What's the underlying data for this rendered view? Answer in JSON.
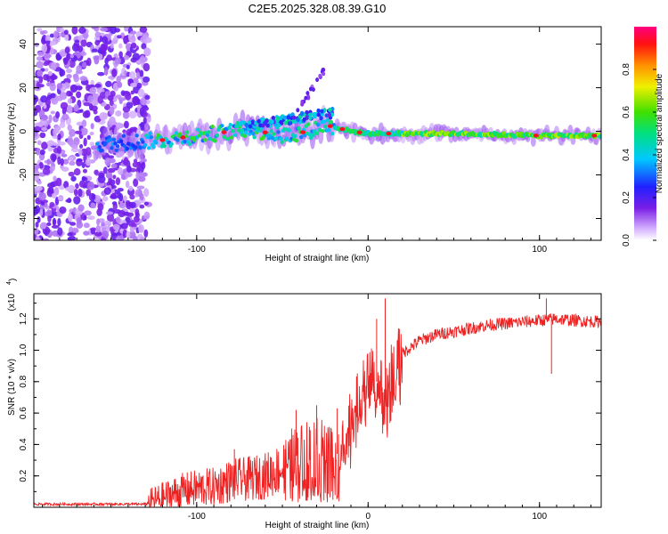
{
  "title": "C2E5.2025.328.08.39.G10",
  "chart_data": [
    {
      "type": "heatmap",
      "title": "C2E5.2025.328.08.39.G10",
      "xlabel": "Height of straight line (km)",
      "ylabel": "Frequency (Hz)",
      "xlim": [
        -195,
        136
      ],
      "ylim": [
        -50,
        48
      ],
      "xticks": [
        -100,
        0,
        100
      ],
      "xtick_labels": [
        "-100",
        "0",
        "100"
      ],
      "yticks": [
        -40,
        -20,
        0,
        20,
        40
      ],
      "ytick_labels": [
        "-40",
        "-20",
        "0",
        "20",
        "40"
      ],
      "colorbar": {
        "label": "Normalized spectral amplitude",
        "range": [
          0,
          1
        ],
        "ticks": [
          0.0,
          0.2,
          0.4,
          0.6,
          0.8
        ],
        "tick_labels": [
          "0.0",
          "0.2",
          "0.4",
          "0.6",
          "0.8"
        ],
        "colormap": "rainbow (white → purple → blue → cyan → green → yellow → orange → red → magenta)"
      },
      "features": [
        {
          "region": "noise",
          "x_range": [
            -195,
            -128
          ],
          "freq_range": [
            -50,
            48
          ],
          "amplitude": [
            0.05,
            0.15
          ]
        },
        {
          "region": "signal_band",
          "x_range": [
            -158,
            136
          ],
          "center_freq_at": [
            [
              -158,
              -6
            ],
            [
              -120,
              -4
            ],
            [
              -90,
              -1
            ],
            [
              -70,
              1
            ],
            [
              -50,
              -2
            ],
            [
              -35,
              0
            ],
            [
              -25,
              3
            ],
            [
              -10,
              0
            ],
            [
              0,
              -1
            ],
            [
              50,
              -1
            ],
            [
              100,
              -2
            ],
            [
              136,
              -2
            ]
          ]
        },
        {
          "region": "red_peaks",
          "x": [
            -120,
            -108,
            -84,
            -60,
            -38,
            -22,
            -15,
            -5,
            12,
            98,
            132
          ],
          "amplitude": 1.0
        }
      ]
    },
    {
      "type": "line",
      "xlabel": "Height of straight line (km)",
      "ylabel": "SNR (10 * v/v)",
      "y_scale_label": "(x10",
      "y_scale_exponent": "4",
      "xlim": [
        -195,
        136
      ],
      "ylim": [
        0,
        1.36
      ],
      "xticks": [
        -100,
        0,
        100
      ],
      "xtick_labels": [
        "-100",
        "0",
        "100"
      ],
      "yticks": [
        0.2,
        0.4,
        0.6,
        0.8,
        1.0,
        1.2
      ],
      "ytick_labels": [
        "0.2",
        "0.4",
        "0.6",
        "0.8",
        "1.0",
        "1.2"
      ],
      "color": "#ee2222",
      "series": [
        {
          "name": "SNR",
          "x": [
            -195,
            -175,
            -150,
            -130,
            -125,
            -120,
            -110,
            -100,
            -90,
            -80,
            -70,
            -60,
            -50,
            -45,
            -40,
            -35,
            -30,
            -25,
            -20,
            -15,
            -10,
            -5,
            0,
            5,
            10,
            15,
            20,
            25,
            30,
            40,
            50,
            60,
            70,
            80,
            90,
            100,
            110,
            120,
            136
          ],
          "y": [
            0.02,
            0.02,
            0.02,
            0.02,
            0.04,
            0.06,
            0.1,
            0.12,
            0.13,
            0.17,
            0.18,
            0.2,
            0.25,
            0.32,
            0.33,
            0.38,
            0.4,
            0.35,
            0.3,
            0.4,
            0.58,
            0.68,
            0.82,
            0.8,
            0.7,
            0.9,
            0.98,
            1.02,
            1.06,
            1.1,
            1.12,
            1.14,
            1.16,
            1.17,
            1.18,
            1.19,
            1.2,
            1.19,
            1.18
          ]
        }
      ],
      "spikes": [
        {
          "x": -78,
          "y": 0.37
        },
        {
          "x": -42,
          "y": 0.62
        },
        {
          "x": -30,
          "y": 0.65
        },
        {
          "x": -18,
          "y": 0.63
        },
        {
          "x": -15,
          "y": 0.52
        },
        {
          "x": 5,
          "y": 1.2
        },
        {
          "x": 10,
          "y": 1.33
        },
        {
          "x": 18,
          "y": 0.85
        },
        {
          "x": 104,
          "y": 1.33
        },
        {
          "x": 107,
          "y": 0.85
        }
      ]
    }
  ]
}
